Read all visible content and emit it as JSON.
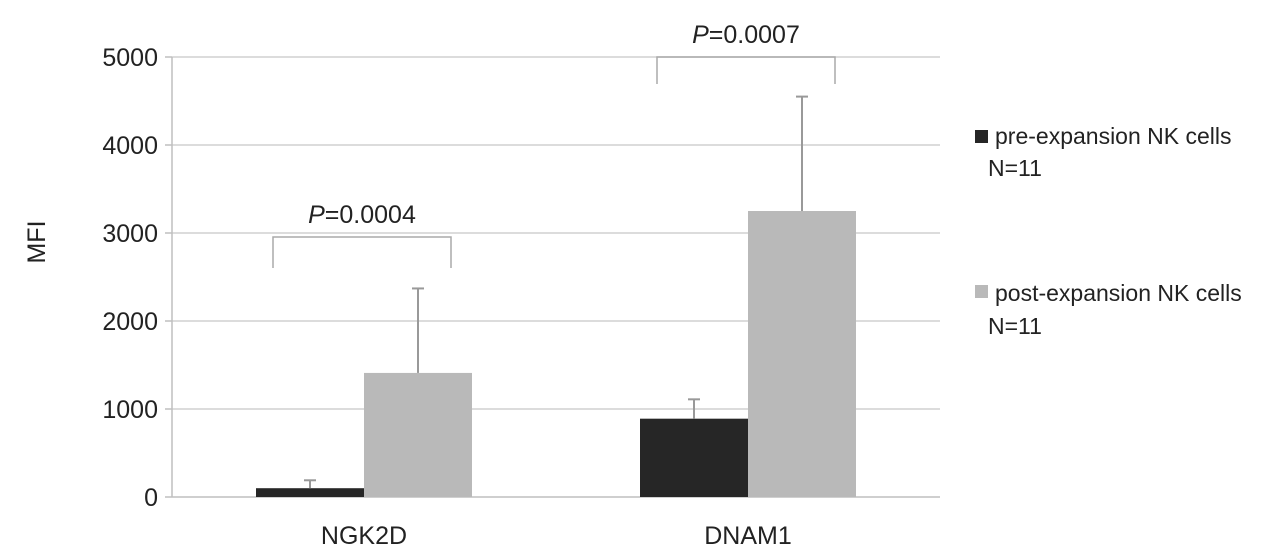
{
  "chart_data": {
    "type": "bar",
    "title": "",
    "xlabel": "",
    "ylabel": "MFI",
    "ylim": [
      0,
      5000
    ],
    "yticks": [
      "0",
      "1000",
      "2000",
      "3000",
      "4000",
      "5000"
    ],
    "grid": true,
    "categories": [
      "NGK2D",
      "DNAM1"
    ],
    "series": [
      {
        "name": "pre-expansion NK cells",
        "n_label": "N=11",
        "color": "#262626",
        "values": [
          100,
          890
        ],
        "errors": [
          90,
          220
        ]
      },
      {
        "name": "post-expansion NK cells",
        "n_label": "N=11",
        "color": "#b9b9b9",
        "values": [
          1410,
          3250
        ],
        "errors": [
          960,
          1300
        ]
      }
    ],
    "annotations": [
      {
        "category": "NGK2D",
        "p_prefix": "P",
        "p_value": "=0.0004"
      },
      {
        "category": "DNAM1",
        "p_prefix": "P",
        "p_value": "=0.0007"
      }
    ],
    "legend_position": "right"
  }
}
